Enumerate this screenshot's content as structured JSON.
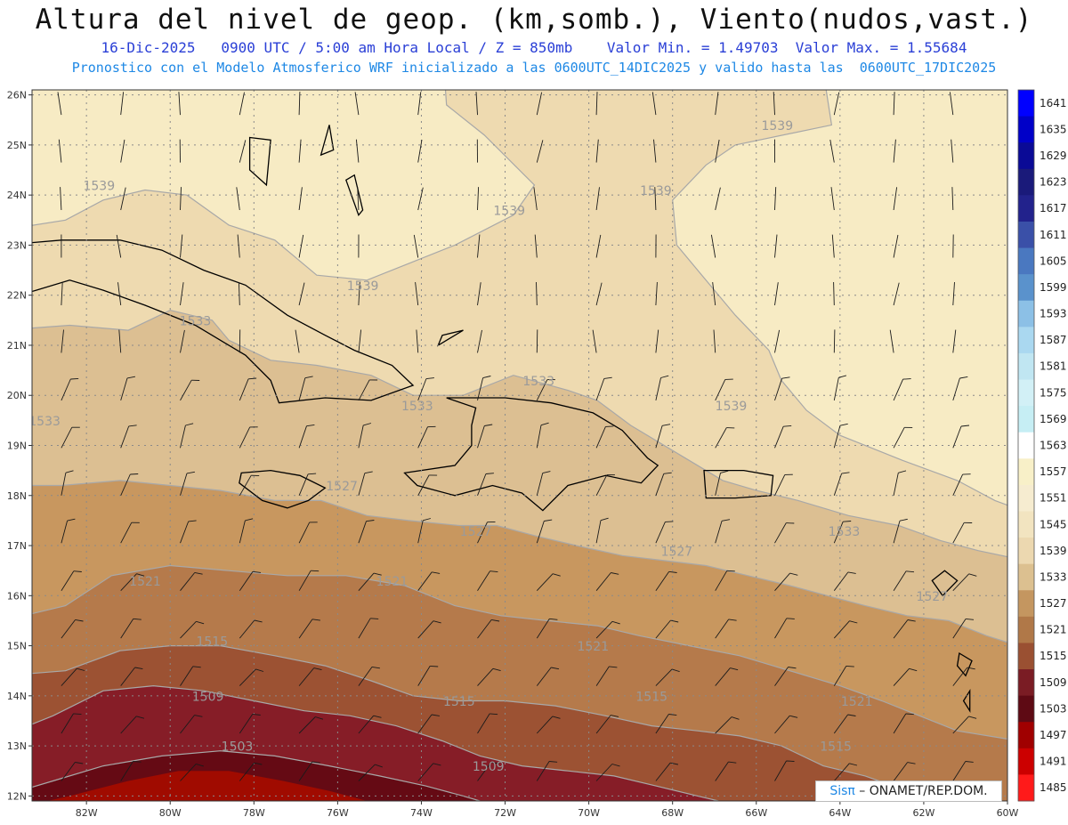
{
  "header": {
    "title": "Altura del nivel de geop. (km,somb.), Viento(nudos,vast.)",
    "subtitle": "16-Dic-2025   0900 UTC / 5:00 am Hora Local / Z = 850mb    Valor Min. = 1.49703  Valor Max. = 1.55684",
    "model_line": "Pronostico con el Modelo Atmosferico WRF inicializado a las 0600UTC_14DIC2025 y valido hasta las  0600UTC_17DIC2025"
  },
  "axes": {
    "lat_labels": [
      "26N",
      "25N",
      "24N",
      "23N",
      "22N",
      "21N",
      "20N",
      "19N",
      "18N",
      "17N",
      "16N",
      "15N",
      "14N",
      "13N",
      "12N"
    ],
    "lon_labels": [
      "82W",
      "80W",
      "78W",
      "76W",
      "74W",
      "72W",
      "70W",
      "68W",
      "66W",
      "64W",
      "62W",
      "60W"
    ]
  },
  "contour_labels": [
    {
      "text": "1539",
      "lon": -81.7,
      "lat": 24.1
    },
    {
      "text": "1539",
      "lon": -71.9,
      "lat": 23.6
    },
    {
      "text": "1539",
      "lon": -68.4,
      "lat": 24.0
    },
    {
      "text": "1539",
      "lon": -65.5,
      "lat": 25.3
    },
    {
      "text": "1539",
      "lon": -75.4,
      "lat": 22.1
    },
    {
      "text": "1539",
      "lon": -66.6,
      "lat": 19.7
    },
    {
      "text": "1533",
      "lon": -79.4,
      "lat": 21.4
    },
    {
      "text": "1533",
      "lon": -83.0,
      "lat": 19.4
    },
    {
      "text": "1533",
      "lon": -74.1,
      "lat": 19.7
    },
    {
      "text": "1533",
      "lon": -71.2,
      "lat": 20.2
    },
    {
      "text": "1533",
      "lon": -63.9,
      "lat": 17.2
    },
    {
      "text": "1527",
      "lon": -75.9,
      "lat": 18.1
    },
    {
      "text": "1527",
      "lon": -72.7,
      "lat": 17.2
    },
    {
      "text": "1527",
      "lon": -67.9,
      "lat": 16.8
    },
    {
      "text": "1527",
      "lon": -61.8,
      "lat": 15.9
    },
    {
      "text": "1521",
      "lon": -80.6,
      "lat": 16.2
    },
    {
      "text": "1521",
      "lon": -74.7,
      "lat": 16.2
    },
    {
      "text": "1521",
      "lon": -69.9,
      "lat": 14.9
    },
    {
      "text": "1521",
      "lon": -63.6,
      "lat": 13.8
    },
    {
      "text": "1515",
      "lon": -79.0,
      "lat": 15.0
    },
    {
      "text": "1515",
      "lon": -73.1,
      "lat": 13.8
    },
    {
      "text": "1515",
      "lon": -68.5,
      "lat": 13.9
    },
    {
      "text": "1515",
      "lon": -64.1,
      "lat": 12.9
    },
    {
      "text": "1509",
      "lon": -79.1,
      "lat": 13.9
    },
    {
      "text": "1509",
      "lon": -72.4,
      "lat": 12.5
    },
    {
      "text": "1503",
      "lon": -78.4,
      "lat": 12.9
    }
  ],
  "colorbar": {
    "labels": [
      "1641",
      "1635",
      "1629",
      "1623",
      "1617",
      "1611",
      "1605",
      "1599",
      "1593",
      "1587",
      "1581",
      "1575",
      "1569",
      "1563",
      "1557",
      "1551",
      "1545",
      "1539",
      "1533",
      "1527",
      "1521",
      "1515",
      "1509",
      "1503",
      "1497",
      "1491",
      "1485"
    ],
    "colors": [
      "#0000ff",
      "#0000c8",
      "#0a0a96",
      "#1a1a7a",
      "#22228c",
      "#3a50a8",
      "#4a78c0",
      "#5a92cc",
      "#8cc0e6",
      "#aad8f0",
      "#c0e6f2",
      "#d2f0f6",
      "#c6eef4",
      "#ffffff",
      "#f8f0c8",
      "#f6ecd0",
      "#f2e4c0",
      "#ecd8b0",
      "#dcc090",
      "#c49660",
      "#b07848",
      "#9a5032",
      "#7a1c24",
      "#5e0a14",
      "#a00000",
      "#cc0000",
      "#ff1a1a"
    ]
  },
  "fill_colors": {
    "lightest": "#f7ebc4",
    "l1539": "#eedab0",
    "l1533": "#dcbf92",
    "l1527": "#c8975f",
    "l1521": "#b57a4b",
    "l1515": "#9c5233",
    "l1509": "#861d27",
    "l1503": "#650a14",
    "l1497": "#a00b00"
  },
  "credit": {
    "brand": "Sisπ",
    "text": " – ONAMET/REP.DOM."
  }
}
